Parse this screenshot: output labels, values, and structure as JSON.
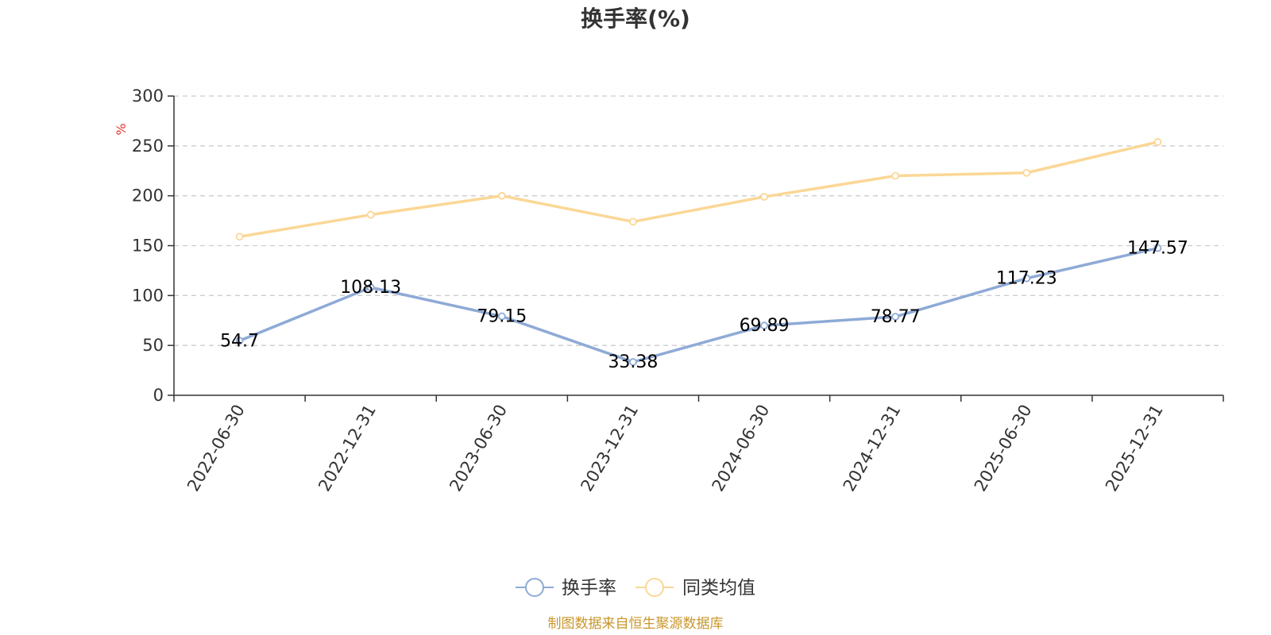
{
  "chart_data": {
    "type": "line",
    "title": "换手率(%)",
    "unit": "%",
    "categories": [
      "2022-06-30",
      "2022-12-31",
      "2023-06-30",
      "2023-12-31",
      "2024-06-30",
      "2024-12-31",
      "2025-06-30",
      "2025-12-31"
    ],
    "series": [
      {
        "name": "换手率",
        "color": "#8eaad6",
        "values": [
          54.7,
          108.13,
          79.15,
          33.38,
          69.89,
          78.77,
          117.23,
          147.57
        ],
        "labels": [
          "54.7",
          "108.13",
          "79.15",
          "33.38",
          "69.89",
          "78.77",
          "117.23",
          "147.57"
        ],
        "show_labels": true
      },
      {
        "name": "同类均值",
        "color": "#fbd796",
        "values": [
          159,
          181,
          200,
          174,
          199,
          220,
          223,
          254
        ],
        "show_labels": false
      }
    ],
    "ylim": [
      0,
      300
    ],
    "yticks": [
      0,
      50,
      100,
      150,
      200,
      250,
      300
    ],
    "grid": true,
    "legend_position": "bottom",
    "source": "制图数据来自恒生聚源数据库"
  }
}
